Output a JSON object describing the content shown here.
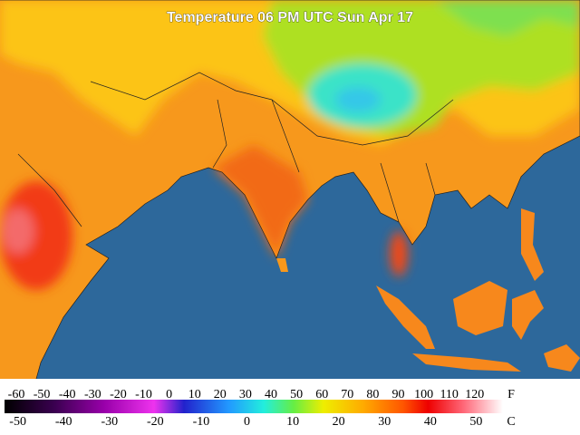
{
  "title": "Temperature 06 PM UTC Sun Apr 17",
  "legend": {
    "fahrenheit": {
      "unit": "F",
      "labels": [
        -60,
        -50,
        -40,
        -30,
        -20,
        -10,
        0,
        10,
        20,
        30,
        40,
        50,
        60,
        70,
        80,
        90,
        100,
        110,
        120
      ]
    },
    "celsius": {
      "unit": "C",
      "labels": [
        -50,
        -40,
        -30,
        -20,
        -10,
        0,
        10,
        20,
        30,
        40,
        50
      ]
    }
  }
}
